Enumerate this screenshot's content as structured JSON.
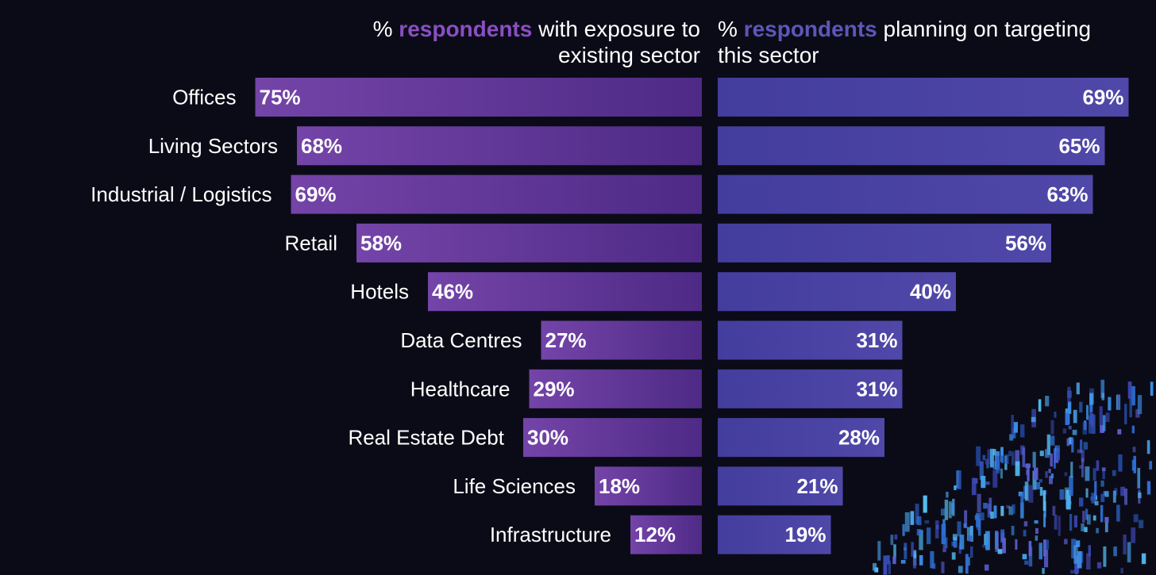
{
  "headers": {
    "left": {
      "prefix": "% ",
      "accent": "respondents",
      "suffix": " with exposure to",
      "line2": "existing sector"
    },
    "right": {
      "prefix": "% ",
      "accent": "respondents",
      "suffix": " planning on targeting",
      "line2": "this sector"
    }
  },
  "colors": {
    "background": "#0b0b17",
    "left_accent": "#8a4fc2",
    "right_accent": "#5e56b8",
    "left_bar_start": "#7444a8",
    "left_bar_end": "#4e2a86",
    "right_bar": "#4f48a8",
    "label": "#ffffff"
  },
  "chart_data": {
    "type": "bar",
    "orientation": "horizontal",
    "layout": "back-to-back",
    "categories": [
      "Offices",
      "Living Sectors",
      "Industrial / Logistics",
      "Retail",
      "Hotels",
      "Data Centres",
      "Healthcare",
      "Real Estate Debt",
      "Life Sciences",
      "Infrastructure"
    ],
    "series": [
      {
        "name": "% respondents with exposure to existing sector",
        "side": "left",
        "values": [
          75,
          68,
          69,
          58,
          46,
          27,
          29,
          30,
          18,
          12
        ],
        "labels": [
          "75%",
          "68%",
          "69%",
          "58%",
          "46%",
          "27%",
          "29%",
          "30%",
          "18%",
          "12%"
        ]
      },
      {
        "name": "% respondents planning on targeting this sector",
        "side": "right",
        "values": [
          69,
          65,
          63,
          56,
          40,
          31,
          31,
          28,
          21,
          19
        ],
        "labels": [
          "69%",
          "65%",
          "63%",
          "56%",
          "40%",
          "31%",
          "31%",
          "28%",
          "21%",
          "19%"
        ]
      }
    ],
    "xlim": [
      0,
      75
    ],
    "unit": "%",
    "legend": "none",
    "grid": false
  }
}
